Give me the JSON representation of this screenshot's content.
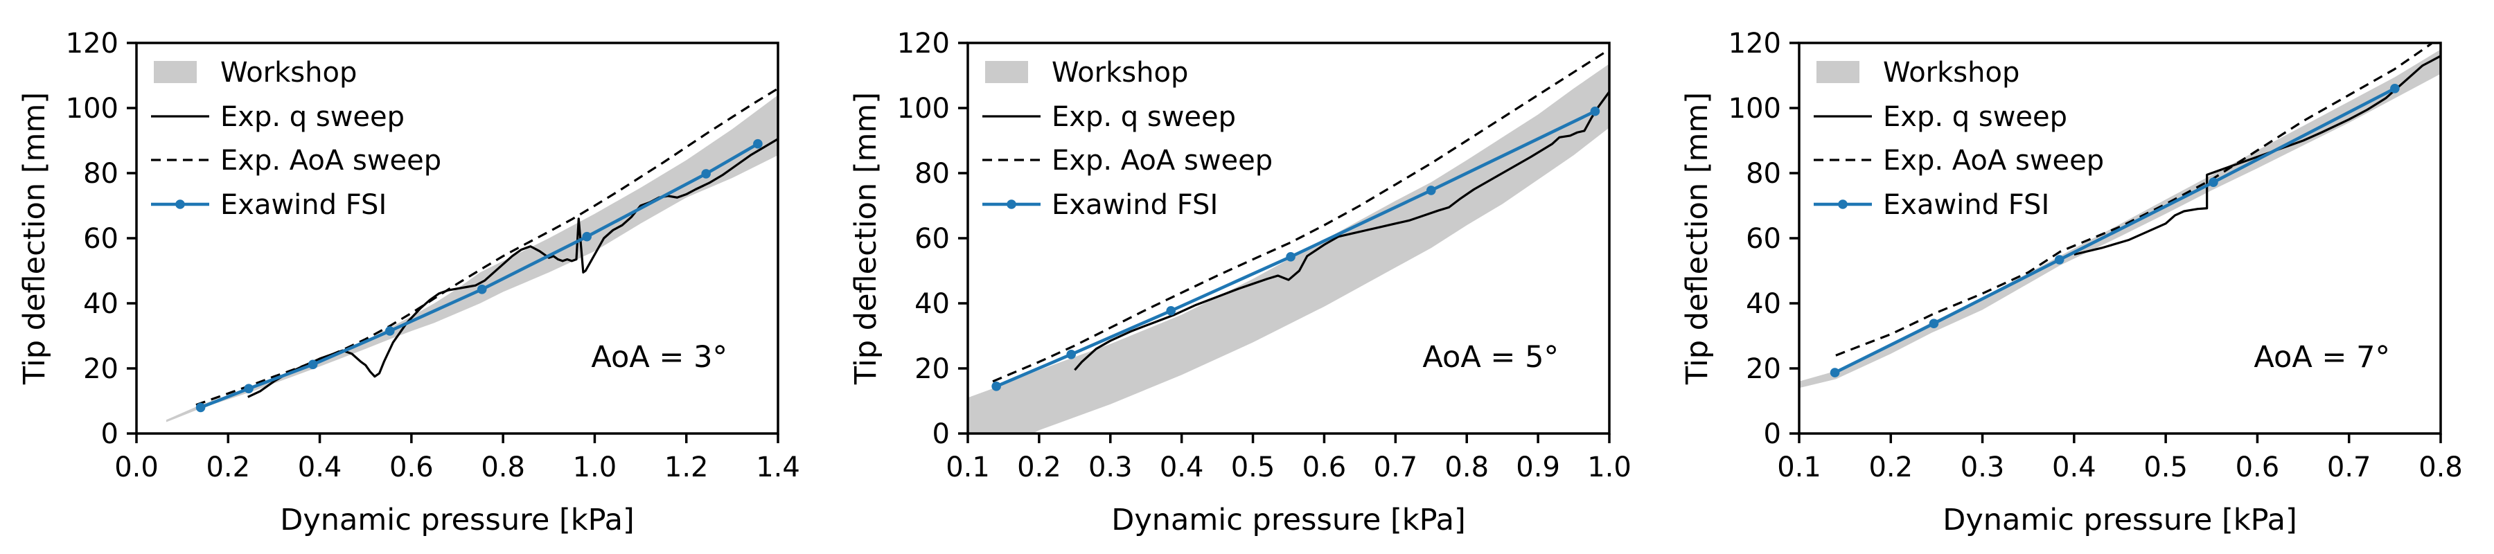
{
  "figure": {
    "xlabel": "Dynamic pressure [kPa]",
    "ylabel": "Tip deflection [mm]",
    "colors": {
      "background": "#ffffff",
      "workshop_band": "#cbcbcb",
      "experiment_line": "#000000",
      "exawind_line": "#1f77b4",
      "axis": "#000000"
    },
    "legend": [
      {
        "label": "Workshop",
        "swatch": "band"
      },
      {
        "label": "Exp. q sweep",
        "swatch": "solid-line"
      },
      {
        "label": "Exp. AoA sweep",
        "swatch": "dashed-line"
      },
      {
        "label": "Exawind FSI",
        "swatch": "marker-line"
      }
    ]
  },
  "chart_data": [
    {
      "type": "line",
      "annotation": "AoA = 3°",
      "xlabel": "Dynamic pressure [kPa]",
      "ylabel": "Tip deflection [mm]",
      "xlim": [
        0.0,
        1.4
      ],
      "ylim": [
        0,
        120
      ],
      "xtick_values": [
        0.0,
        0.2,
        0.4,
        0.6,
        0.8,
        1.0,
        1.2,
        1.4
      ],
      "xtick_labels": [
        "0.0",
        "0.2",
        "0.4",
        "0.6",
        "0.8",
        "1.0",
        "1.2",
        "1.4"
      ],
      "ytick_values": [
        0,
        20,
        40,
        60,
        80,
        100,
        120
      ],
      "ytick_labels": [
        "0",
        "20",
        "40",
        "60",
        "80",
        "100",
        "120"
      ],
      "grid": false,
      "legend_position": "upper left",
      "series": [
        {
          "name": "Workshop",
          "type": "band",
          "x": [
            0.065,
            0.14,
            0.25,
            0.385,
            0.5,
            0.553,
            0.6,
            0.65,
            0.7,
            0.75,
            0.8,
            0.85,
            0.9,
            1.0,
            1.1,
            1.2,
            1.3,
            1.4
          ],
          "upper": [
            4.2,
            8.8,
            14.3,
            21.8,
            28.5,
            32.5,
            36,
            40,
            44.5,
            49.5,
            53,
            56.5,
            60,
            67.5,
            75.5,
            84,
            93.5,
            104
          ],
          "lower": [
            3.5,
            7.7,
            12.8,
            19.8,
            26,
            29,
            31.5,
            34,
            37,
            40,
            43.5,
            46.5,
            49.5,
            56,
            64.5,
            72.5,
            78.5,
            85.5
          ]
        },
        {
          "name": "Exp. q sweep",
          "type": "line",
          "style": "solid",
          "x": [
            0.243,
            0.27,
            0.3,
            0.33,
            0.36,
            0.385,
            0.4,
            0.43,
            0.45,
            0.47,
            0.49,
            0.5,
            0.51,
            0.52,
            0.53,
            0.54,
            0.55,
            0.56,
            0.575,
            0.59,
            0.6,
            0.62,
            0.64,
            0.66,
            0.68,
            0.7,
            0.72,
            0.74,
            0.76,
            0.78,
            0.8,
            0.82,
            0.84,
            0.86,
            0.88,
            0.9,
            0.91,
            0.92,
            0.93,
            0.94,
            0.95,
            0.96,
            0.965,
            0.975,
            0.98,
            1.0,
            1.02,
            1.04,
            1.06,
            1.08,
            1.1,
            1.12,
            1.14,
            1.16,
            1.18,
            1.2,
            1.22,
            1.25,
            1.28,
            1.31,
            1.34,
            1.37,
            1.4
          ],
          "y": [
            11.2,
            13,
            16,
            18.5,
            20.5,
            22,
            23,
            24.5,
            25.5,
            24.5,
            22,
            21,
            19,
            17.5,
            18.5,
            22,
            25,
            28,
            31,
            34,
            35.5,
            38.5,
            41,
            43,
            44,
            44.5,
            45,
            45.5,
            47,
            49.5,
            52,
            54.5,
            56.5,
            57.5,
            56,
            54,
            54.5,
            53.5,
            53,
            53.5,
            53,
            53.5,
            66,
            49.5,
            50,
            55,
            60,
            62.5,
            64,
            66.5,
            70,
            71,
            72.5,
            73,
            72.5,
            73.5,
            75,
            77,
            79.5,
            82.5,
            85.5,
            88,
            90.5
          ]
        },
        {
          "name": "Exp. AoA sweep",
          "type": "line",
          "style": "dashed",
          "x": [
            0.13,
            0.2,
            0.25,
            0.3,
            0.35,
            0.4,
            0.45,
            0.5,
            0.55,
            0.6,
            0.65,
            0.7,
            0.75,
            0.8,
            0.85,
            0.9,
            0.95,
            1.0,
            1.05,
            1.1,
            1.15,
            1.2,
            1.25,
            1.3,
            1.35,
            1.4
          ],
          "y": [
            8.8,
            12.3,
            14.8,
            17.5,
            20,
            22.7,
            25.7,
            29,
            32.8,
            37,
            41.5,
            46,
            50.3,
            54.5,
            58.3,
            62,
            65.8,
            70,
            74.3,
            78.8,
            83.3,
            88,
            92.7,
            97.2,
            101.7,
            106
          ]
        },
        {
          "name": "Exawind FSI",
          "type": "line",
          "style": "solid-markers",
          "x": [
            0.14,
            0.245,
            0.385,
            0.553,
            0.754,
            0.983,
            1.243,
            1.356
          ],
          "y": [
            8,
            13.8,
            21.2,
            31.5,
            44.3,
            60.5,
            79.8,
            89
          ]
        }
      ]
    },
    {
      "type": "line",
      "annotation": "AoA = 5°",
      "xlabel": "Dynamic pressure [kPa]",
      "ylabel": "Tip deflection [mm]",
      "xlim": [
        0.1,
        1.0
      ],
      "ylim": [
        0,
        120
      ],
      "xtick_values": [
        0.1,
        0.2,
        0.3,
        0.4,
        0.5,
        0.6,
        0.7,
        0.8,
        0.9,
        1.0
      ],
      "xtick_labels": [
        "0.1",
        "0.2",
        "0.3",
        "0.4",
        "0.5",
        "0.6",
        "0.7",
        "0.8",
        "0.9",
        "1.0"
      ],
      "ytick_values": [
        0,
        20,
        40,
        60,
        80,
        100,
        120
      ],
      "ytick_labels": [
        "0",
        "20",
        "40",
        "60",
        "80",
        "100",
        "120"
      ],
      "grid": false,
      "legend_position": "upper left",
      "series": [
        {
          "name": "Workshop",
          "type": "band",
          "x": [
            0.1,
            0.15,
            0.2,
            0.25,
            0.3,
            0.35,
            0.4,
            0.45,
            0.5,
            0.55,
            0.6,
            0.65,
            0.7,
            0.75,
            0.8,
            0.85,
            0.9,
            0.95,
            1.0
          ],
          "upper": [
            11,
            15,
            19.5,
            23.5,
            27.5,
            32,
            36.5,
            42,
            47.5,
            53.5,
            59.5,
            65.5,
            71.5,
            77.2,
            84,
            91,
            98,
            106,
            113.6
          ],
          "lower": [
            -10,
            -4.5,
            1,
            5,
            9,
            13.5,
            18,
            23,
            28,
            33.5,
            39,
            45,
            51,
            57,
            64,
            70.5,
            78,
            85.5,
            94
          ]
        },
        {
          "name": "Exp. q sweep",
          "type": "line",
          "style": "solid",
          "x": [
            0.25,
            0.26,
            0.28,
            0.3,
            0.33,
            0.36,
            0.39,
            0.42,
            0.45,
            0.48,
            0.5,
            0.52,
            0.535,
            0.55,
            0.565,
            0.576,
            0.6,
            0.62,
            0.64,
            0.66,
            0.68,
            0.7,
            0.72,
            0.74,
            0.76,
            0.775,
            0.79,
            0.81,
            0.83,
            0.85,
            0.87,
            0.89,
            0.905,
            0.92,
            0.93,
            0.945,
            0.955,
            0.965,
            0.975,
            0.985,
            1.0
          ],
          "y": [
            19.5,
            22,
            26,
            28.5,
            31.5,
            34,
            36.5,
            39.5,
            42,
            44.5,
            46,
            47.5,
            48.5,
            47.2,
            50,
            54.5,
            58,
            60.5,
            61.5,
            62.5,
            63.5,
            64.5,
            65.5,
            67,
            68.5,
            69.5,
            72,
            75,
            77.5,
            80,
            82.5,
            85,
            87,
            89,
            91,
            91.5,
            92.5,
            93,
            97,
            100.5,
            105
          ]
        },
        {
          "name": "Exp. AoA sweep",
          "type": "line",
          "style": "dashed",
          "x": [
            0.135,
            0.2,
            0.25,
            0.3,
            0.35,
            0.385,
            0.45,
            0.5,
            0.553,
            0.6,
            0.65,
            0.7,
            0.75,
            0.8,
            0.85,
            0.9,
            0.95,
            1.0
          ],
          "y": [
            16,
            22,
            27,
            32.5,
            38,
            41.7,
            48.5,
            53.5,
            58.7,
            64,
            70,
            76.5,
            83,
            90,
            97,
            104,
            111,
            118
          ]
        },
        {
          "name": "Exawind FSI",
          "type": "line",
          "style": "solid-markers",
          "x": [
            0.14,
            0.245,
            0.385,
            0.553,
            0.75,
            0.98
          ],
          "y": [
            14.5,
            24.3,
            37.7,
            54.3,
            74.7,
            99
          ]
        }
      ]
    },
    {
      "type": "line",
      "annotation": "AoA = 7°",
      "xlabel": "Dynamic pressure [kPa]",
      "ylabel": "Tip deflection [mm]",
      "xlim": [
        0.1,
        0.8
      ],
      "ylim": [
        0,
        120
      ],
      "xtick_values": [
        0.1,
        0.2,
        0.3,
        0.4,
        0.5,
        0.6,
        0.7,
        0.8
      ],
      "xtick_labels": [
        "0.1",
        "0.2",
        "0.3",
        "0.4",
        "0.5",
        "0.6",
        "0.7",
        "0.8"
      ],
      "ytick_values": [
        0,
        20,
        40,
        60,
        80,
        100,
        120
      ],
      "ytick_labels": [
        "0",
        "20",
        "40",
        "60",
        "80",
        "100",
        "120"
      ],
      "grid": false,
      "legend_position": "upper left",
      "series": [
        {
          "name": "Workshop",
          "type": "band",
          "x": [
            0.1,
            0.14,
            0.2,
            0.245,
            0.3,
            0.385,
            0.45,
            0.5,
            0.55,
            0.6,
            0.65,
            0.7,
            0.75,
            0.8
          ],
          "upper": [
            16,
            19.2,
            27.5,
            34.2,
            41.8,
            54.6,
            64.3,
            71.9,
            79.4,
            87,
            94.5,
            102,
            109.5,
            118
          ],
          "lower": [
            14,
            16.7,
            24.5,
            31,
            38,
            51.7,
            60.5,
            67.5,
            74.7,
            81.5,
            88.5,
            95.5,
            103,
            110.5
          ]
        },
        {
          "name": "Exp. q sweep",
          "type": "line",
          "style": "solid",
          "x": [
            0.4,
            0.43,
            0.46,
            0.48,
            0.5,
            0.51,
            0.52,
            0.535,
            0.545,
            0.545,
            0.56,
            0.58,
            0.6,
            0.62,
            0.63,
            0.65,
            0.67,
            0.7,
            0.72,
            0.74,
            0.75,
            0.76,
            0.77,
            0.78,
            0.79,
            0.8
          ],
          "y": [
            55,
            57,
            59.5,
            62,
            64.5,
            67,
            68.3,
            69,
            69.2,
            79.5,
            81,
            83,
            85,
            87,
            88,
            90,
            92.5,
            96.5,
            99.5,
            103,
            105.5,
            108,
            110.5,
            113,
            114.5,
            116
          ]
        },
        {
          "name": "Exp. AoA sweep",
          "type": "line",
          "style": "dashed",
          "x": [
            0.14,
            0.2,
            0.247,
            0.3,
            0.35,
            0.385,
            0.45,
            0.5,
            0.55,
            0.6,
            0.65,
            0.7,
            0.75,
            0.79
          ],
          "y": [
            24,
            30.5,
            36.8,
            43,
            49.5,
            55.9,
            63.5,
            70.5,
            78,
            87,
            96,
            104,
            112,
            119.8
          ]
        },
        {
          "name": "Exawind FSI",
          "type": "line",
          "style": "solid-markers",
          "x": [
            0.139,
            0.247,
            0.384,
            0.552,
            0.75
          ],
          "y": [
            18.7,
            33.8,
            53.4,
            77.2,
            106
          ]
        }
      ]
    }
  ]
}
